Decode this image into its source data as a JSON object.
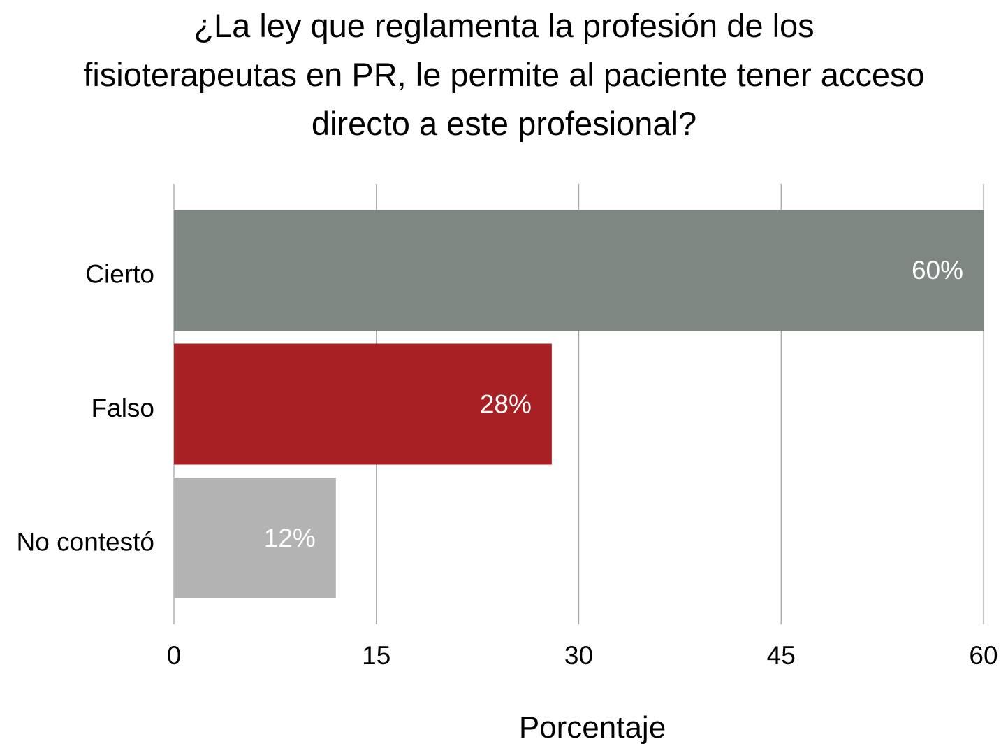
{
  "chart_data": {
    "type": "bar",
    "orientation": "horizontal",
    "title_lines": [
      "¿La ley que reglamenta la profesión de los",
      "fisioterapeutas en PR, le permite al paciente tener acceso",
      "directo a este profesional?"
    ],
    "xlabel": "Porcentaje",
    "ylabel": "",
    "xlim": [
      0,
      60
    ],
    "x_ticks": [
      0,
      15,
      30,
      45,
      60
    ],
    "grid": "vertical",
    "legend": "none",
    "categories": [
      "Cierto",
      "Falso",
      "No contestó"
    ],
    "values": [
      60,
      28,
      12
    ],
    "data_labels": [
      "60%",
      "28%",
      "12%"
    ],
    "colors": [
      "#7f8783",
      "#a81f24",
      "#b3b3b3"
    ]
  }
}
